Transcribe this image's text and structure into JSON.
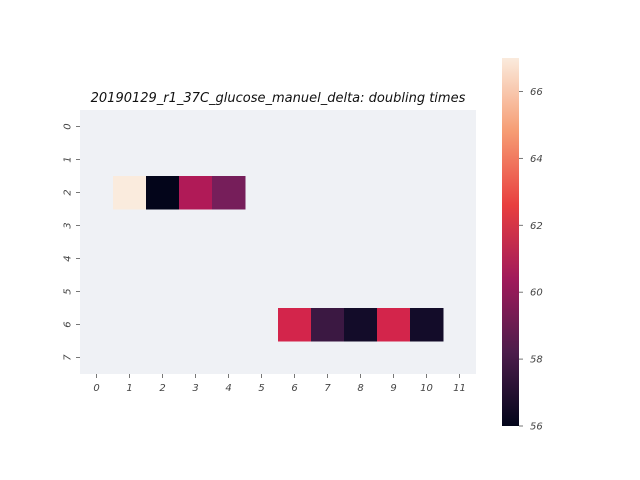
{
  "chart_data": {
    "type": "heatmap",
    "title": "20190129_r1_37C_glucose_manuel_delta: doubling times",
    "xlabel": "",
    "ylabel": "",
    "x_categories": [
      "0",
      "1",
      "2",
      "3",
      "4",
      "5",
      "6",
      "7",
      "8",
      "9",
      "10",
      "11"
    ],
    "y_categories": [
      "0",
      "1",
      "2",
      "3",
      "4",
      "5",
      "6",
      "7"
    ],
    "cells": [
      {
        "row": 2,
        "col": 1,
        "value": 67.0
      },
      {
        "row": 2,
        "col": 2,
        "value": 56.0
      },
      {
        "row": 2,
        "col": 3,
        "value": 60.8
      },
      {
        "row": 2,
        "col": 4,
        "value": 59.2
      },
      {
        "row": 6,
        "col": 6,
        "value": 61.8
      },
      {
        "row": 6,
        "col": 7,
        "value": 57.8
      },
      {
        "row": 6,
        "col": 8,
        "value": 56.7
      },
      {
        "row": 6,
        "col": 9,
        "value": 61.8
      },
      {
        "row": 6,
        "col": 10,
        "value": 56.7
      }
    ],
    "missing_color": "#eff1f5",
    "colorbar": {
      "range": [
        56,
        67
      ],
      "ticks": [
        "56",
        "58",
        "60",
        "62",
        "64",
        "66"
      ],
      "colormap": "rocket"
    },
    "grid": false
  }
}
